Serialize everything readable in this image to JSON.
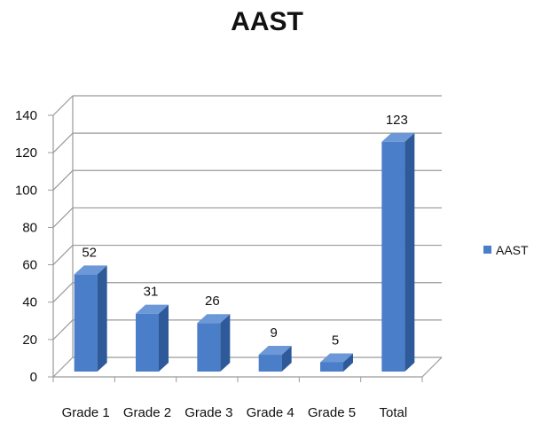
{
  "chart_data": {
    "type": "bar",
    "title": "AAST",
    "categories": [
      "Grade 1",
      "Grade 2",
      "Grade 3",
      "Grade 4",
      "Grade 5",
      "Total"
    ],
    "series": [
      {
        "name": "AAST",
        "values": [
          52,
          31,
          26,
          9,
          5,
          123
        ]
      }
    ],
    "data_labels": [
      "52",
      "31",
      "26",
      "9",
      "5",
      "123"
    ],
    "y_ticks": [
      "0",
      "20",
      "40",
      "60",
      "80",
      "100",
      "120",
      "140"
    ],
    "ylim": [
      0,
      140
    ],
    "grid": true,
    "legend_position": "right",
    "style_3d": true,
    "colors": {
      "bar_front": "#4a7ec8",
      "bar_side": "#2f5a9a",
      "bar_top": "#6c98d8",
      "grid": "#9a9a9a",
      "text": "#111111"
    }
  }
}
